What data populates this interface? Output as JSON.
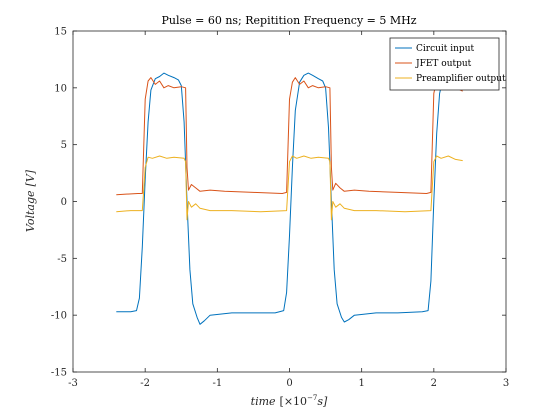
{
  "chart_data": {
    "type": "line",
    "title": "Pulse = 60 ns; Repitition Frequency = 5 MHz",
    "xlabel_main": "time",
    "xlabel_unit_prefix": "[×10",
    "xlabel_exponent": "−7",
    "xlabel_unit_suffix": "s]",
    "ylabel_main": "Voltage",
    "ylabel_unit": "[V]",
    "xlim": [
      -3,
      3
    ],
    "ylim": [
      -15,
      15
    ],
    "x_ticks": [
      -3,
      -2,
      -1,
      0,
      1,
      2,
      3
    ],
    "y_ticks": [
      -15,
      -10,
      -5,
      0,
      5,
      10,
      15
    ],
    "x_tick_labels": [
      "-3",
      "-2",
      "-1",
      "0",
      "1",
      "2",
      "3"
    ],
    "y_tick_labels": [
      "-15",
      "-10",
      "-5",
      "0",
      "5",
      "10",
      "15"
    ],
    "grid": false,
    "legend_position": "top-right",
    "series": [
      {
        "name": "Circuit input",
        "color": "#0072BD",
        "points": [
          [
            -2.4,
            -9.7
          ],
          [
            -2.2,
            -9.7
          ],
          [
            -2.12,
            -9.6
          ],
          [
            -2.08,
            -8.5
          ],
          [
            -2.04,
            -4.0
          ],
          [
            -2.0,
            2.0
          ],
          [
            -1.96,
            7.0
          ],
          [
            -1.92,
            9.8
          ],
          [
            -1.86,
            10.8
          ],
          [
            -1.8,
            11.0
          ],
          [
            -1.74,
            11.3
          ],
          [
            -1.68,
            11.1
          ],
          [
            -1.6,
            10.9
          ],
          [
            -1.54,
            10.7
          ],
          [
            -1.5,
            10.2
          ],
          [
            -1.46,
            7.0
          ],
          [
            -1.42,
            0.0
          ],
          [
            -1.38,
            -6.0
          ],
          [
            -1.34,
            -9.0
          ],
          [
            -1.28,
            -10.2
          ],
          [
            -1.24,
            -10.8
          ],
          [
            -1.18,
            -10.5
          ],
          [
            -1.1,
            -10.0
          ],
          [
            -0.8,
            -9.8
          ],
          [
            -0.5,
            -9.8
          ],
          [
            -0.2,
            -9.8
          ],
          [
            -0.08,
            -9.6
          ],
          [
            -0.04,
            -8.0
          ],
          [
            0.0,
            -3.0
          ],
          [
            0.04,
            3.0
          ],
          [
            0.08,
            8.0
          ],
          [
            0.14,
            10.5
          ],
          [
            0.2,
            11.1
          ],
          [
            0.26,
            11.3
          ],
          [
            0.32,
            11.1
          ],
          [
            0.4,
            10.8
          ],
          [
            0.46,
            10.6
          ],
          [
            0.5,
            10.0
          ],
          [
            0.54,
            6.5
          ],
          [
            0.58,
            0.0
          ],
          [
            0.62,
            -6.0
          ],
          [
            0.66,
            -9.0
          ],
          [
            0.72,
            -10.2
          ],
          [
            0.76,
            -10.6
          ],
          [
            0.82,
            -10.4
          ],
          [
            0.9,
            -10.0
          ],
          [
            1.2,
            -9.8
          ],
          [
            1.5,
            -9.8
          ],
          [
            1.84,
            -9.7
          ],
          [
            1.92,
            -9.6
          ],
          [
            1.96,
            -7.0
          ],
          [
            2.0,
            0.0
          ],
          [
            2.04,
            6.0
          ],
          [
            2.08,
            9.5
          ],
          [
            2.12,
            10.6
          ],
          [
            2.16,
            11.0
          ]
        ]
      },
      {
        "name": "JFET output",
        "color": "#D95319",
        "points": [
          [
            -2.4,
            0.6
          ],
          [
            -2.1,
            0.7
          ],
          [
            -2.04,
            0.7
          ],
          [
            -2.0,
            9.0
          ],
          [
            -1.96,
            10.6
          ],
          [
            -1.92,
            10.9
          ],
          [
            -1.86,
            10.3
          ],
          [
            -1.8,
            10.6
          ],
          [
            -1.74,
            10.0
          ],
          [
            -1.68,
            10.2
          ],
          [
            -1.6,
            10.0
          ],
          [
            -1.5,
            10.1
          ],
          [
            -1.44,
            10.0
          ],
          [
            -1.42,
            3.0
          ],
          [
            -1.4,
            1.0
          ],
          [
            -1.36,
            1.5
          ],
          [
            -1.3,
            1.2
          ],
          [
            -1.24,
            0.9
          ],
          [
            -1.1,
            1.0
          ],
          [
            -0.9,
            0.9
          ],
          [
            -0.5,
            0.8
          ],
          [
            -0.1,
            0.7
          ],
          [
            -0.04,
            0.8
          ],
          [
            0.0,
            9.0
          ],
          [
            0.04,
            10.5
          ],
          [
            0.08,
            10.9
          ],
          [
            0.14,
            10.3
          ],
          [
            0.2,
            10.6
          ],
          [
            0.26,
            10.0
          ],
          [
            0.32,
            10.2
          ],
          [
            0.4,
            10.0
          ],
          [
            0.5,
            10.1
          ],
          [
            0.56,
            10.0
          ],
          [
            0.58,
            3.0
          ],
          [
            0.6,
            1.0
          ],
          [
            0.64,
            1.6
          ],
          [
            0.7,
            1.2
          ],
          [
            0.76,
            0.9
          ],
          [
            0.9,
            1.0
          ],
          [
            1.1,
            0.9
          ],
          [
            1.5,
            0.8
          ],
          [
            1.9,
            0.7
          ],
          [
            1.96,
            0.8
          ],
          [
            2.0,
            9.5
          ],
          [
            2.04,
            10.7
          ],
          [
            2.1,
            10.3
          ],
          [
            2.2,
            10.1
          ],
          [
            2.3,
            10.0
          ],
          [
            2.4,
            9.7
          ]
        ]
      },
      {
        "name": "Preamplifier output",
        "color": "#EDB120",
        "points": [
          [
            -2.4,
            -0.9
          ],
          [
            -2.2,
            -0.8
          ],
          [
            -2.04,
            -0.8
          ],
          [
            -2.0,
            3.0
          ],
          [
            -1.96,
            3.9
          ],
          [
            -1.9,
            3.8
          ],
          [
            -1.8,
            4.0
          ],
          [
            -1.7,
            3.8
          ],
          [
            -1.6,
            3.9
          ],
          [
            -1.46,
            3.8
          ],
          [
            -1.44,
            3.5
          ],
          [
            -1.42,
            -1.6
          ],
          [
            -1.4,
            0.0
          ],
          [
            -1.36,
            -0.5
          ],
          [
            -1.3,
            -0.2
          ],
          [
            -1.24,
            -0.6
          ],
          [
            -1.1,
            -0.8
          ],
          [
            -0.8,
            -0.8
          ],
          [
            -0.4,
            -0.9
          ],
          [
            -0.04,
            -0.8
          ],
          [
            0.0,
            3.5
          ],
          [
            0.04,
            4.0
          ],
          [
            0.1,
            3.8
          ],
          [
            0.2,
            4.0
          ],
          [
            0.3,
            3.8
          ],
          [
            0.4,
            3.9
          ],
          [
            0.54,
            3.8
          ],
          [
            0.56,
            3.5
          ],
          [
            0.58,
            -1.6
          ],
          [
            0.6,
            0.0
          ],
          [
            0.64,
            -0.5
          ],
          [
            0.7,
            -0.2
          ],
          [
            0.76,
            -0.6
          ],
          [
            0.9,
            -0.8
          ],
          [
            1.2,
            -0.8
          ],
          [
            1.6,
            -0.9
          ],
          [
            1.96,
            -0.8
          ],
          [
            2.0,
            3.5
          ],
          [
            2.04,
            4.0
          ],
          [
            2.1,
            3.8
          ],
          [
            2.2,
            4.0
          ],
          [
            2.3,
            3.7
          ],
          [
            2.4,
            3.6
          ]
        ]
      }
    ]
  }
}
